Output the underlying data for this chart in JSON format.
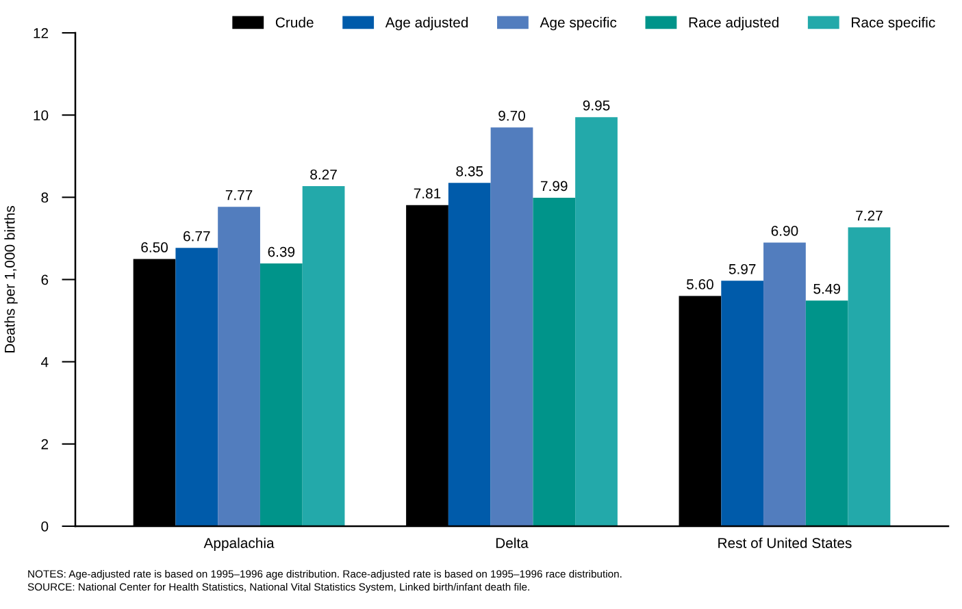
{
  "chart_data": {
    "type": "bar",
    "ylabel": "Deaths per 1,000 births",
    "categories": [
      "Appalachia",
      "Delta",
      "Rest of United States"
    ],
    "series": [
      {
        "name": "Crude",
        "color": "#000000",
        "values": [
          6.5,
          7.81,
          5.6
        ],
        "value_labels": [
          "6.50",
          "7.81",
          "5.60"
        ]
      },
      {
        "name": "Age adjusted",
        "color": "#005baa",
        "values": [
          6.77,
          8.35,
          5.97
        ],
        "value_labels": [
          "6.77",
          "8.35",
          "5.97"
        ]
      },
      {
        "name": "Age specific",
        "color": "#527dbe",
        "values": [
          7.77,
          9.7,
          6.9
        ],
        "value_labels": [
          "7.77",
          "9.70",
          "6.90"
        ]
      },
      {
        "name": "Race adjusted",
        "color": "#00948a",
        "values": [
          6.39,
          7.99,
          5.49
        ],
        "value_labels": [
          "6.39",
          "7.99",
          "5.49"
        ]
      },
      {
        "name": "Race specific",
        "color": "#23a9aa",
        "values": [
          8.27,
          9.95,
          7.27
        ],
        "value_labels": [
          "8.27",
          "9.95",
          "7.27"
        ]
      }
    ],
    "ylim": [
      0,
      12
    ],
    "yticks": [
      0,
      2,
      4,
      6,
      8,
      10,
      12
    ],
    "grid": false,
    "legend": "top right",
    "annotations": [
      "NOTES: Age-adjusted rate is based on 1995–1996 age distribution. Race-adjusted rate is based on 1995–1996 race distribution.",
      "SOURCE: National Center for Health Statistics, National Vital Statistics System, Linked birth/infant death file."
    ]
  }
}
